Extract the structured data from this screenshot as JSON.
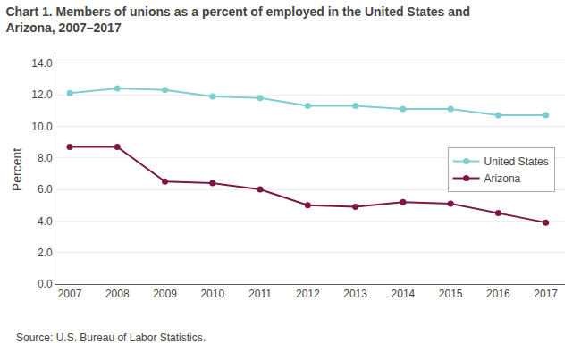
{
  "chart_data": {
    "type": "line",
    "title": "Chart 1. Members of unions as a percent of employed in the United States and Arizona, 2007–2017",
    "ylabel": "Percent",
    "annotations": [
      "Source: U.S. Bureau of Labor Statistics."
    ],
    "x": [
      2007,
      2008,
      2009,
      2010,
      2011,
      2012,
      2013,
      2014,
      2015,
      2016,
      2017
    ],
    "series": [
      {
        "name": "United States",
        "color": "#7ecece",
        "marker": "circle",
        "values": [
          12.1,
          12.4,
          12.3,
          11.9,
          11.8,
          11.3,
          11.3,
          11.1,
          11.1,
          10.7,
          10.7
        ]
      },
      {
        "name": "Arizona",
        "color": "#7b1645",
        "marker": "circle",
        "values": [
          8.7,
          8.7,
          6.5,
          6.4,
          6.0,
          5.0,
          4.9,
          5.2,
          5.1,
          4.5,
          3.9
        ]
      }
    ],
    "xlim": [
      2006.7,
      2017.4
    ],
    "xticks": [
      2007,
      2008,
      2009,
      2010,
      2011,
      2012,
      2013,
      2014,
      2015,
      2016,
      2017
    ],
    "ylim": [
      0,
      14.5
    ],
    "yticks": [
      {
        "value": 0,
        "label": "0.0"
      },
      {
        "value": 2,
        "label": "2.0"
      },
      {
        "value": 4,
        "label": "4.0"
      },
      {
        "value": 6,
        "label": "6.0"
      },
      {
        "value": 8,
        "label": "8.0"
      },
      {
        "value": 10,
        "label": "10.0"
      },
      {
        "value": 12,
        "label": "12.0"
      },
      {
        "value": 14,
        "label": "14.0"
      }
    ],
    "grid": true,
    "legend": "right"
  }
}
